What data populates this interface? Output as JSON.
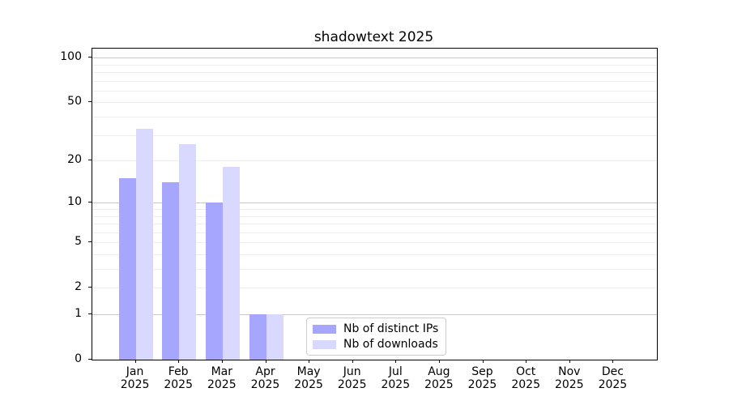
{
  "title": "shadowtext 2025",
  "chart_data": {
    "type": "bar",
    "title": "shadowtext 2025",
    "categories": [
      "Jan 2025",
      "Feb 2025",
      "Mar 2025",
      "Apr 2025",
      "May 2025",
      "Jun 2025",
      "Jul 2025",
      "Aug 2025",
      "Sep 2025",
      "Oct 2025",
      "Nov 2025",
      "Dec 2025"
    ],
    "series": [
      {
        "name": "Nb of distinct IPs",
        "color": "#a6a6ff",
        "values": [
          15,
          14,
          10,
          1,
          0,
          0,
          0,
          0,
          0,
          0,
          0,
          0
        ]
      },
      {
        "name": "Nb of downloads",
        "color": "#d9d9ff",
        "values": [
          33,
          26,
          18,
          1,
          0,
          0,
          0,
          0,
          0,
          0,
          0,
          0
        ]
      }
    ],
    "xlabel": "",
    "ylabel": "",
    "y_scale": "log10(value+1)",
    "ylim": [
      0,
      115
    ],
    "y_ticks": [
      0,
      1,
      2,
      5,
      10,
      20,
      50,
      100
    ],
    "gridlines_major": [
      1,
      10,
      100
    ],
    "gridlines_minor": [
      2,
      3,
      4,
      5,
      6,
      7,
      8,
      9,
      20,
      30,
      40,
      50,
      60,
      70,
      80,
      90
    ],
    "grid": true,
    "legend_position": "lower center"
  },
  "colors": {
    "series_dark": "#a6a6ff",
    "series_light": "#d9d9ff",
    "grid_minor": "#ededed",
    "grid_major": "#c8c8c8",
    "axis": "#000000",
    "background": "#ffffff"
  }
}
